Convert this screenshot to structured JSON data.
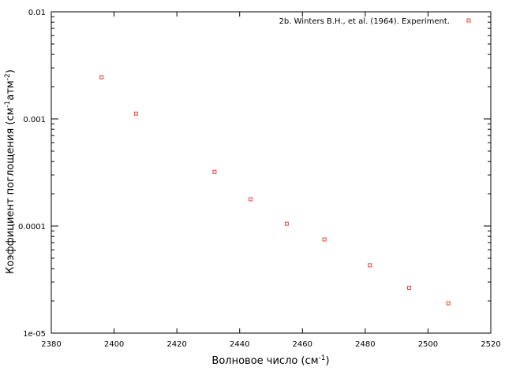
{
  "chart_data": {
    "type": "scatter",
    "title": "",
    "xlabel": "Волновое число (см",
    "xlabel_sup": "-1",
    "xlabel_tail": ")",
    "ylabel_main": "Коэффициент поглощения (см",
    "ylabel_sup1": "-1",
    "ylabel_mid": "атм",
    "ylabel_sup2": "-2",
    "ylabel_tail": ")",
    "xlim": [
      2380,
      2520
    ],
    "ylim": [
      1e-05,
      0.01
    ],
    "yscale": "log",
    "grid": false,
    "legend_position": "top-right",
    "x_ticks": [
      2380,
      2400,
      2420,
      2440,
      2460,
      2480,
      2500,
      2520
    ],
    "x_tick_labels": [
      "2380",
      "2400",
      "2420",
      "2440",
      "2460",
      "2480",
      "2500",
      "2520"
    ],
    "y_ticks": [
      0.01,
      0.001,
      0.0001,
      1e-05
    ],
    "y_tick_labels": [
      "0.01",
      "0.001",
      "0.0001",
      "1e-05"
    ],
    "series": [
      {
        "name": "2b. Winters B.H., et al. (1964). Experiment.",
        "color": "#e8413a",
        "marker": "square-open",
        "x": [
          2396,
          2407,
          2432,
          2443.5,
          2455,
          2467,
          2481.5,
          2494,
          2506.5
        ],
        "y": [
          0.00245,
          0.00112,
          0.00032,
          0.000178,
          0.000105,
          7.5e-05,
          4.3e-05,
          2.65e-05,
          1.9e-05
        ]
      }
    ]
  }
}
